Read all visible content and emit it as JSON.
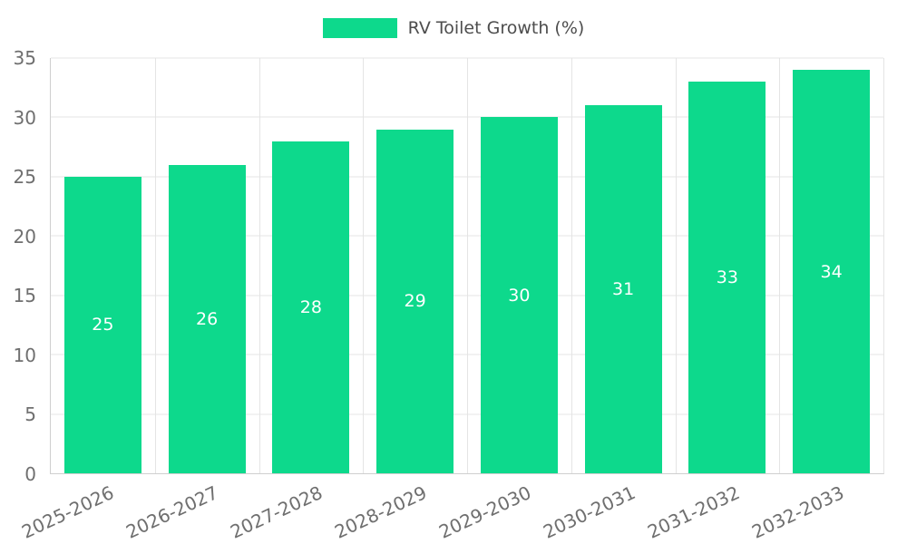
{
  "chart_data": {
    "type": "bar",
    "title": "",
    "legend_label": "RV Toilet Growth (%)",
    "legend_position": "top",
    "categories": [
      "2025-2026",
      "2026-2027",
      "2027-2028",
      "2028-2029",
      "2029-2030",
      "2030-2031",
      "2031-2032",
      "2032-2033"
    ],
    "series": [
      {
        "name": "RV Toilet Growth (%)",
        "values": [
          25,
          26,
          28,
          29,
          30,
          31,
          33,
          34
        ]
      }
    ],
    "xlabel": "",
    "ylabel": "",
    "ylim": [
      0,
      35
    ],
    "yticks": [
      0,
      5,
      10,
      15,
      20,
      25,
      30,
      35
    ],
    "grid": true,
    "value_labels_shown": true,
    "colors": {
      "bar": "#0dd98c",
      "value_label": "#ffffff",
      "tick_label": "#6f6f6f",
      "legend_text": "#4d4d4d",
      "gridline": "#e4e4e4",
      "axis_line": "#cfcfcf"
    }
  }
}
